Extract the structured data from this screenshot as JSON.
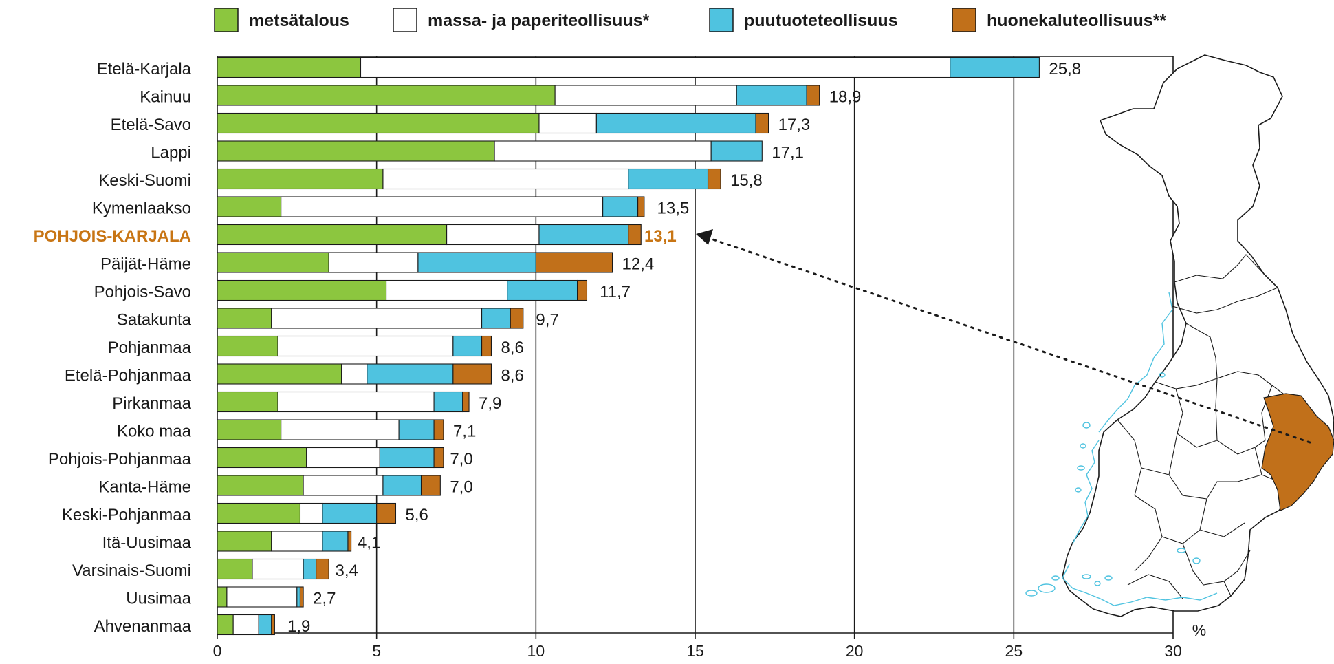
{
  "chart_data": {
    "type": "bar",
    "orientation": "horizontal",
    "stacked": true,
    "title": "",
    "xlabel": "%",
    "xlim": [
      0,
      30
    ],
    "xticks": [
      "0",
      "5",
      "10",
      "15",
      "20",
      "25",
      "30"
    ],
    "grid": "vertical",
    "legend_position": "top",
    "highlight_category": "POHJOIS-KARJALA",
    "highlight_color": "#c87514",
    "categories": [
      "Etelä-Karjala",
      "Kainuu",
      "Etelä-Savo",
      "Lappi",
      "Keski-Suomi",
      "Kymenlaakso",
      "POHJOIS-KARJALA",
      "Päijät-Häme",
      "Pohjois-Savo",
      "Satakunta",
      "Pohjanmaa",
      "Etelä-Pohjanmaa",
      "Pirkanmaa",
      "Koko maa",
      "Pohjois-Pohjanmaa",
      "Kanta-Häme",
      "Keski-Pohjanmaa",
      "Itä-Uusimaa",
      "Varsinais-Suomi",
      "Uusimaa",
      "Ahvenanmaa"
    ],
    "series": [
      {
        "name": "metsätalous",
        "color": "#8cc63f",
        "values": [
          4.5,
          10.6,
          10.1,
          8.7,
          5.2,
          2.0,
          7.2,
          3.5,
          5.3,
          1.7,
          1.9,
          3.9,
          1.9,
          2.0,
          2.8,
          2.7,
          2.6,
          1.7,
          1.1,
          0.3,
          0.5
        ]
      },
      {
        "name": "massa- ja paperiteollisuus*",
        "color": "#ffffff",
        "values": [
          18.5,
          5.7,
          1.8,
          6.8,
          7.7,
          10.1,
          2.9,
          2.8,
          3.8,
          6.6,
          5.5,
          0.8,
          4.9,
          3.7,
          2.3,
          2.5,
          0.7,
          1.6,
          1.6,
          2.2,
          0.8
        ]
      },
      {
        "name": "puutuoteteollisuus",
        "color": "#4fc3e0",
        "values": [
          2.8,
          2.2,
          5.0,
          1.6,
          2.5,
          1.1,
          2.8,
          3.7,
          2.2,
          0.9,
          0.9,
          2.7,
          0.9,
          1.1,
          1.7,
          1.2,
          1.7,
          0.8,
          0.4,
          0.1,
          0.4
        ]
      },
      {
        "name": "huonekaluteollisuus**",
        "color": "#c1701a",
        "values": [
          0.0,
          0.4,
          0.4,
          0.0,
          0.4,
          0.2,
          0.4,
          2.4,
          0.3,
          0.4,
          0.3,
          1.2,
          0.2,
          0.3,
          0.3,
          0.6,
          0.6,
          0.1,
          0.4,
          0.1,
          0.1
        ]
      }
    ],
    "totals": [
      "25,8",
      "18,9",
      "17,3",
      "17,1",
      "15,8",
      "13,5",
      "13,1",
      "12,4",
      "11,7",
      "9,7",
      "8,6",
      "8,6",
      "7,9",
      "7,1",
      "7,0",
      "7,0",
      "5,6",
      "4,1",
      "3,4",
      "2,7",
      "1,9"
    ],
    "total_values": [
      25.8,
      18.9,
      17.3,
      17.1,
      15.8,
      13.5,
      13.1,
      12.4,
      11.7,
      9.7,
      8.6,
      8.6,
      7.9,
      7.1,
      7.0,
      7.0,
      5.6,
      4.1,
      3.4,
      2.7,
      1.9
    ]
  },
  "map": {
    "description_icon": "finland-map-icon",
    "highlight_color": "#c1701a",
    "lake_color": "#4fc3e0"
  }
}
